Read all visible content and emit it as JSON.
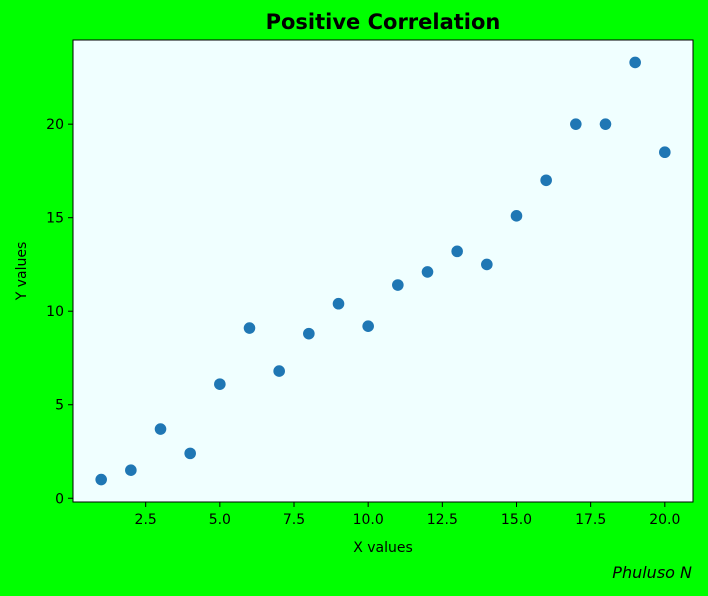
{
  "chart_data": {
    "type": "scatter",
    "title": "Positive Correlation",
    "xlabel": "X values",
    "ylabel": "Y values",
    "xlim": [
      0.05,
      20.95
    ],
    "ylim": [
      -0.2,
      24.5
    ],
    "xticks": [
      2.5,
      5.0,
      7.5,
      10.0,
      12.5,
      15.0,
      17.5,
      20.0
    ],
    "xtick_labels": [
      "2.5",
      "5.0",
      "7.5",
      "10.0",
      "12.5",
      "15.0",
      "17.5",
      "20.0"
    ],
    "yticks": [
      0,
      5,
      10,
      15,
      20
    ],
    "ytick_labels": [
      "0",
      "5",
      "10",
      "15",
      "20"
    ],
    "grid": false,
    "series": [
      {
        "x": [
          1,
          2,
          3,
          4,
          5,
          6,
          7,
          8,
          9,
          10,
          11,
          12,
          13,
          14,
          15,
          16,
          17,
          18,
          19,
          20
        ],
        "y": [
          1.0,
          1.5,
          3.7,
          2.4,
          6.1,
          9.1,
          6.8,
          8.8,
          10.4,
          9.2,
          11.4,
          12.1,
          13.2,
          12.5,
          15.1,
          17.0,
          20.0,
          20.0,
          23.3,
          18.5
        ],
        "color": "#1f77b4"
      }
    ],
    "credit": "Phuluso N",
    "colors": {
      "figure_background": "#00ff00",
      "plot_background": "#f0ffff",
      "marker": "#1f77b4"
    }
  }
}
